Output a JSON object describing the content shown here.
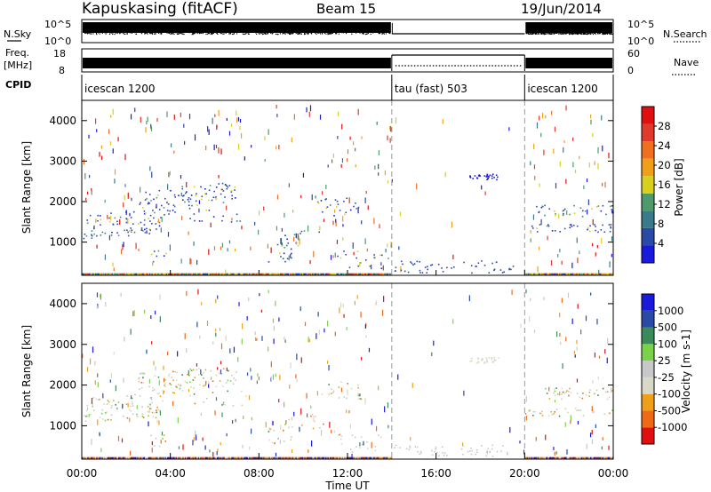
{
  "header": {
    "station": "Kapuskasing (fitACF)",
    "beam": "Beam 15",
    "date": "19/Jun/2014"
  },
  "strips": {
    "nsky_label": "N.Sky",
    "nsky_top": "10^5",
    "nsky_bottom": "10^0",
    "nsearch_label": "N.Search",
    "freq_label_1": "Freq.",
    "freq_label_2": "[MHz]",
    "freq_top": "18",
    "freq_bottom": "8",
    "nave_label": "Nave",
    "nave_top": "60",
    "nave_bottom": "0",
    "cpid_label": "CPID",
    "cpid_segments": [
      {
        "name": "icescan 1200",
        "start_h": 0,
        "end_h": 14
      },
      {
        "name": "tau (fast) 503",
        "start_h": 14,
        "end_h": 20
      },
      {
        "name": "icescan 1200",
        "start_h": 20,
        "end_h": 24
      }
    ]
  },
  "colors": {
    "power": [
      "#1a1adc",
      "#2a4aa8",
      "#3a7a8a",
      "#4f9a6a",
      "#d8d020",
      "#f0a018",
      "#f07020",
      "#e23a2a",
      "#e01010"
    ],
    "velocity": [
      "#e01010",
      "#ee6a18",
      "#f0a018",
      "#d8d8c8",
      "#c8c8c8",
      "#7ad24a",
      "#3a8a5a",
      "#2a4aa8",
      "#1a1adc"
    ]
  },
  "chart_data": [
    {
      "type": "heatmap",
      "title": "Power",
      "ylabel": "Slant Range [km]",
      "xlim": [
        0,
        24
      ],
      "ylim": [
        180,
        4500
      ],
      "yticks": [
        1000,
        2000,
        3000,
        4000
      ],
      "colorbar_label": "Power [dB]",
      "colorbar_ticks": [
        "4",
        "8",
        "12",
        "16",
        "20",
        "24",
        "28"
      ],
      "colorbar_range": [
        0,
        32
      ]
    },
    {
      "type": "heatmap",
      "title": "Velocity",
      "ylabel": "Slant Range [km]",
      "xlabel": "Time UT",
      "xlim": [
        0,
        24
      ],
      "ylim": [
        180,
        4500
      ],
      "yticks": [
        1000,
        2000,
        3000,
        4000
      ],
      "xticks": [
        "00:00",
        "04:00",
        "08:00",
        "12:00",
        "16:00",
        "20:00",
        "00:00"
      ],
      "colorbar_label": "Velocity [m s-1]",
      "colorbar_ticks": [
        "1000",
        "500",
        "100",
        "25",
        "-25",
        "-100",
        "-500",
        "-1000"
      ]
    }
  ],
  "xaxis": {
    "ticks": [
      "00:00",
      "04:00",
      "08:00",
      "12:00",
      "16:00",
      "20:00",
      "00:00"
    ],
    "label": "Time UT"
  }
}
